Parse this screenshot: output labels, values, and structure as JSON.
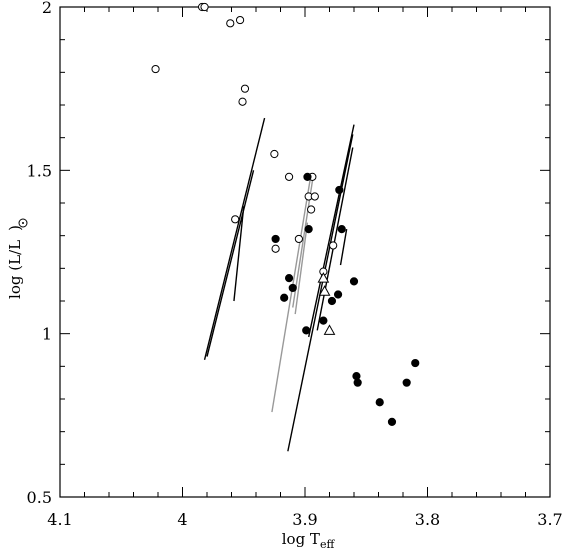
{
  "chart_data": {
    "type": "scatter",
    "xlabel": "log T",
    "xlabel_sub": "eff",
    "ylabel": "log (L/L",
    "ylabel_close": ")",
    "xlim": [
      4.1,
      3.7
    ],
    "ylim": [
      0.5,
      2.0
    ],
    "x_reversed": true,
    "x_ticks": [
      4.1,
      4.0,
      3.9,
      3.8,
      3.7
    ],
    "x_tick_labels": [
      "4.1",
      "4",
      "3.9",
      "3.8",
      "3.7"
    ],
    "y_ticks": [
      0.5,
      1.0,
      1.5,
      2.0
    ],
    "y_tick_labels": [
      "0.5",
      "1",
      "1.5",
      "2"
    ],
    "grid": false,
    "legend": "none",
    "series": [
      {
        "marker": "open-circle",
        "points": [
          [
            4.022,
            1.81
          ],
          [
            3.984,
            2.0
          ],
          [
            3.982,
            2.0
          ],
          [
            3.961,
            1.95
          ],
          [
            3.953,
            1.96
          ],
          [
            3.951,
            1.71
          ],
          [
            3.949,
            1.75
          ],
          [
            3.957,
            1.35
          ],
          [
            3.925,
            1.55
          ],
          [
            3.913,
            1.48
          ],
          [
            3.894,
            1.48
          ],
          [
            3.897,
            1.42
          ],
          [
            3.892,
            1.42
          ],
          [
            3.895,
            1.38
          ],
          [
            3.905,
            1.29
          ],
          [
            3.924,
            1.26
          ],
          [
            3.877,
            1.27
          ],
          [
            3.885,
            1.19
          ]
        ]
      },
      {
        "marker": "filled-circle",
        "points": [
          [
            3.898,
            1.48
          ],
          [
            3.924,
            1.29
          ],
          [
            3.897,
            1.32
          ],
          [
            3.872,
            1.44
          ],
          [
            3.87,
            1.32
          ],
          [
            3.913,
            1.17
          ],
          [
            3.91,
            1.14
          ],
          [
            3.917,
            1.11
          ],
          [
            3.873,
            1.12
          ],
          [
            3.878,
            1.1
          ],
          [
            3.885,
            1.04
          ],
          [
            3.899,
            1.01
          ],
          [
            3.86,
            1.16
          ],
          [
            3.858,
            0.87
          ],
          [
            3.857,
            0.85
          ],
          [
            3.839,
            0.79
          ],
          [
            3.829,
            0.73
          ],
          [
            3.817,
            0.85
          ],
          [
            3.81,
            0.91
          ]
        ]
      },
      {
        "marker": "open-triangle",
        "points": [
          [
            3.885,
            1.17
          ],
          [
            3.884,
            1.13
          ],
          [
            3.88,
            1.01
          ]
        ]
      }
    ],
    "lines": [
      {
        "color": "#000000",
        "segments": [
          [
            [
              3.982,
              0.92
            ],
            [
              3.933,
              1.66
            ]
          ],
          [
            [
              3.98,
              0.93
            ],
            [
              3.942,
              1.5
            ]
          ],
          [
            [
              3.958,
              1.1
            ],
            [
              3.95,
              1.39
            ]
          ]
        ]
      },
      {
        "color": "#999999",
        "segments": [
          [
            [
              3.927,
              0.76
            ],
            [
              3.895,
              1.49
            ]
          ],
          [
            [
              3.91,
              1.08
            ],
            [
              3.893,
              1.49
            ]
          ],
          [
            [
              3.908,
              1.06
            ],
            [
              3.898,
              1.34
            ]
          ]
        ]
      },
      {
        "color": "#000000",
        "segments": [
          [
            [
              3.914,
              0.64
            ],
            [
              3.861,
              1.61
            ]
          ],
          [
            [
              3.89,
              1.01
            ],
            [
              3.861,
              1.57
            ]
          ],
          [
            [
              3.897,
              0.99
            ],
            [
              3.86,
              1.64
            ]
          ],
          [
            [
              3.871,
              1.21
            ],
            [
              3.866,
              1.32
            ]
          ]
        ]
      }
    ]
  }
}
